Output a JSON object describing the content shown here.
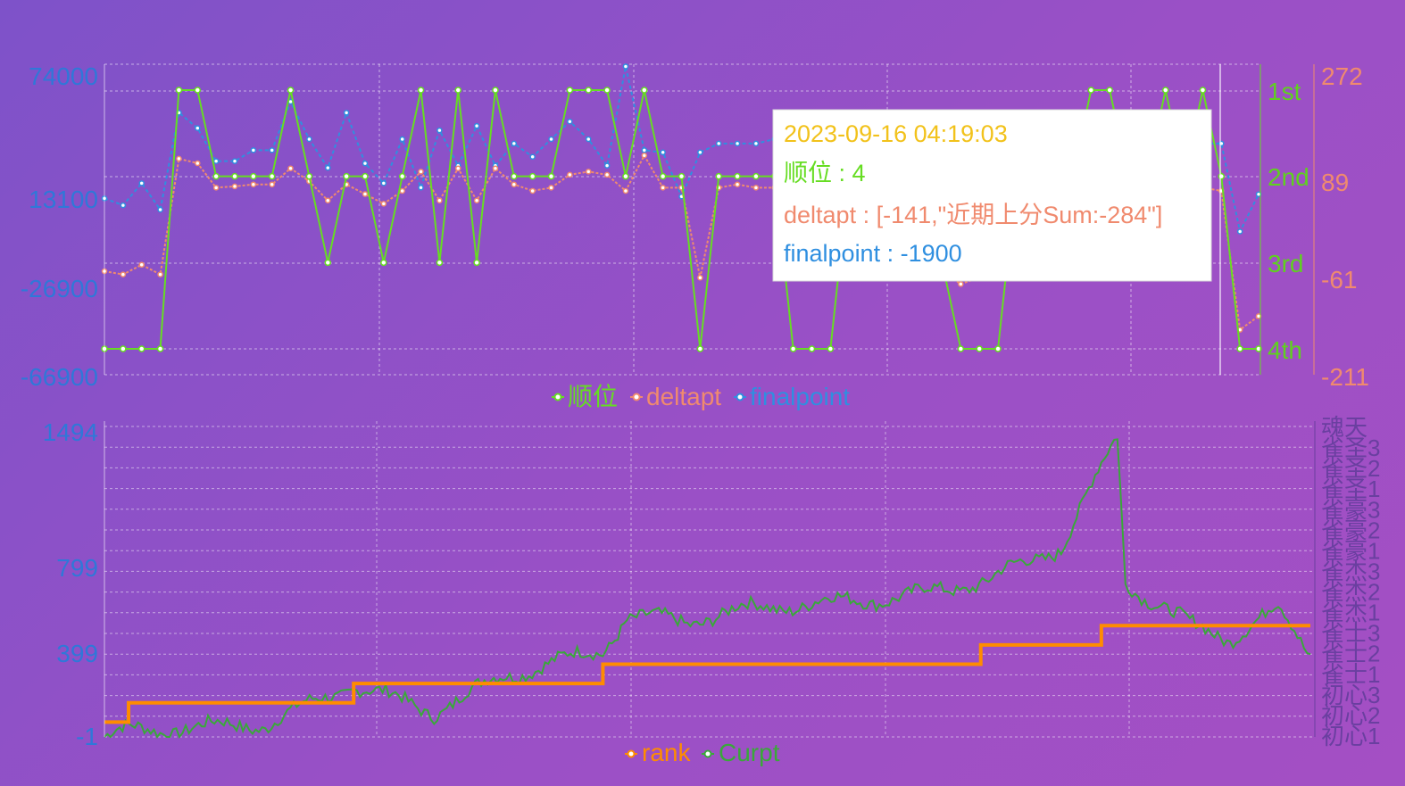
{
  "charts": [
    {
      "type": "line",
      "series": [
        {
          "name": "顺位",
          "color": "#66dd22"
        },
        {
          "name": "deltapt",
          "color": "#f08a6e"
        },
        {
          "name": "finalpoint",
          "color": "#2f8fe0"
        }
      ],
      "y_left_ticks": [
        "74000",
        "13100",
        "-26900",
        "-66900"
      ],
      "y_right_rank_ticks": [
        "1st",
        "2nd",
        "3rd",
        "4th"
      ],
      "y_right_delta_ticks": [
        "272",
        "89",
        "-61",
        "-211"
      ],
      "tooltip": {
        "time": "2023-09-16 04:19:03",
        "rank_line": "顺位 : 4",
        "delta_line": "deltapt : [-141,\"近期上分Sum:-284\"]",
        "final_line": "finalpoint : -1900"
      }
    },
    {
      "type": "line",
      "series": [
        {
          "name": "rank",
          "color": "#ff8c00"
        },
        {
          "name": "Curpt",
          "color": "#3aa83a"
        }
      ],
      "y_left_ticks": [
        "1494",
        "799",
        "399",
        "-1"
      ],
      "y_right_ticks": [
        "魂天",
        "雀圣3",
        "雀圣2",
        "雀圣1",
        "雀豪3",
        "雀豪2",
        "雀豪1",
        "雀杰3",
        "雀杰2",
        "雀杰1",
        "雀士3",
        "雀士2",
        "雀士1",
        "初心3",
        "初心2",
        "初心1"
      ]
    }
  ],
  "chart_data": [
    {
      "type": "line",
      "title": "",
      "x": [
        1,
        2,
        3,
        4,
        5,
        6,
        7,
        8,
        9,
        10,
        11,
        12,
        13,
        14,
        15,
        16,
        17,
        18,
        19,
        20,
        21,
        22,
        23,
        24,
        25,
        26,
        27,
        28,
        29,
        30,
        31,
        32,
        33,
        34,
        35,
        36,
        37,
        38,
        39,
        40,
        41,
        42,
        43,
        44,
        45,
        46,
        47,
        48,
        49,
        50,
        51,
        52,
        53,
        54,
        55,
        56,
        57,
        58,
        59,
        60,
        61,
        62,
        63
      ],
      "series": [
        {
          "name": "顺位",
          "axis": "rank",
          "values": [
            4,
            4,
            4,
            4,
            1,
            1,
            2,
            2,
            2,
            2,
            1,
            2,
            3,
            2,
            2,
            3,
            2,
            1,
            3,
            1,
            3,
            1,
            2,
            2,
            2,
            1,
            1,
            1,
            2,
            1,
            2,
            2,
            4,
            2,
            2,
            2,
            2,
            4,
            4,
            4,
            2,
            2,
            2,
            2,
            2,
            3,
            4,
            4,
            4,
            2,
            2,
            2,
            2,
            1,
            1,
            2,
            2,
            1,
            2,
            1,
            2,
            4,
            4
          ]
        },
        {
          "name": "deltapt",
          "axis": "delta",
          "values": [
            -50,
            -55,
            -40,
            -55,
            125,
            118,
            80,
            82,
            85,
            85,
            110,
            90,
            60,
            85,
            70,
            55,
            75,
            105,
            60,
            110,
            60,
            110,
            85,
            75,
            80,
            100,
            105,
            100,
            75,
            130,
            80,
            80,
            -60,
            80,
            85,
            80,
            80,
            -50,
            -50,
            -50,
            80,
            80,
            80,
            80,
            80,
            -50,
            -70,
            -60,
            80,
            80,
            80,
            80,
            80,
            80,
            80,
            80,
            80,
            80,
            80,
            80,
            75,
            -141,
            -120
          ]
        },
        {
          "name": "finalpoint",
          "axis": "left",
          "values": [
            13100,
            10000,
            20000,
            8000,
            52000,
            45000,
            30000,
            30000,
            35000,
            35000,
            57000,
            40000,
            27000,
            52000,
            29000,
            20000,
            40000,
            18000,
            44000,
            28000,
            46000,
            28000,
            38000,
            32000,
            40000,
            48000,
            40000,
            28000,
            73000,
            35000,
            34000,
            14000,
            34000,
            38000,
            38000,
            38000,
            40000,
            40000,
            40000,
            40000,
            38000,
            38000,
            38000,
            38000,
            38000,
            38000,
            38000,
            38000,
            38000,
            38000,
            38000,
            38000,
            38000,
            38000,
            38000,
            38000,
            38000,
            38000,
            38000,
            38000,
            38000,
            -1900,
            15000
          ]
        }
      ],
      "y_left_range": [
        -66900,
        74000
      ],
      "rank_range": [
        "4th",
        "1st"
      ],
      "delta_range": [
        -211,
        272
      ],
      "legend": "bottom-center",
      "grid": true
    },
    {
      "type": "line",
      "title": "",
      "series": [
        {
          "name": "rank",
          "axis": "right",
          "steps": [
            [
              0,
              1
            ],
            [
              60,
              2
            ],
            [
              620,
              3
            ],
            [
              1240,
              4
            ],
            [
              2180,
              5
            ],
            [
              2480,
              6
            ]
          ]
        },
        {
          "name": "Curpt",
          "axis": "left",
          "trend": [
            [
              0,
              -1
            ],
            [
              60,
              30
            ],
            [
              400,
              60
            ],
            [
              620,
              250
            ],
            [
              820,
              120
            ],
            [
              1000,
              300
            ],
            [
              1240,
              420
            ],
            [
              1300,
              580
            ],
            [
              1450,
              560
            ],
            [
              1600,
              620
            ],
            [
              2000,
              680
            ],
            [
              2200,
              760
            ],
            [
              2380,
              920
            ],
            [
              2480,
              1300
            ],
            [
              2520,
              1450
            ],
            [
              2540,
              750
            ],
            [
              2700,
              540
            ],
            [
              2800,
              480
            ],
            [
              2920,
              620
            ],
            [
              3000,
              400
            ]
          ]
        }
      ],
      "y_left_range": [
        -1,
        1494
      ],
      "legend": "bottom-center",
      "grid": true
    }
  ]
}
